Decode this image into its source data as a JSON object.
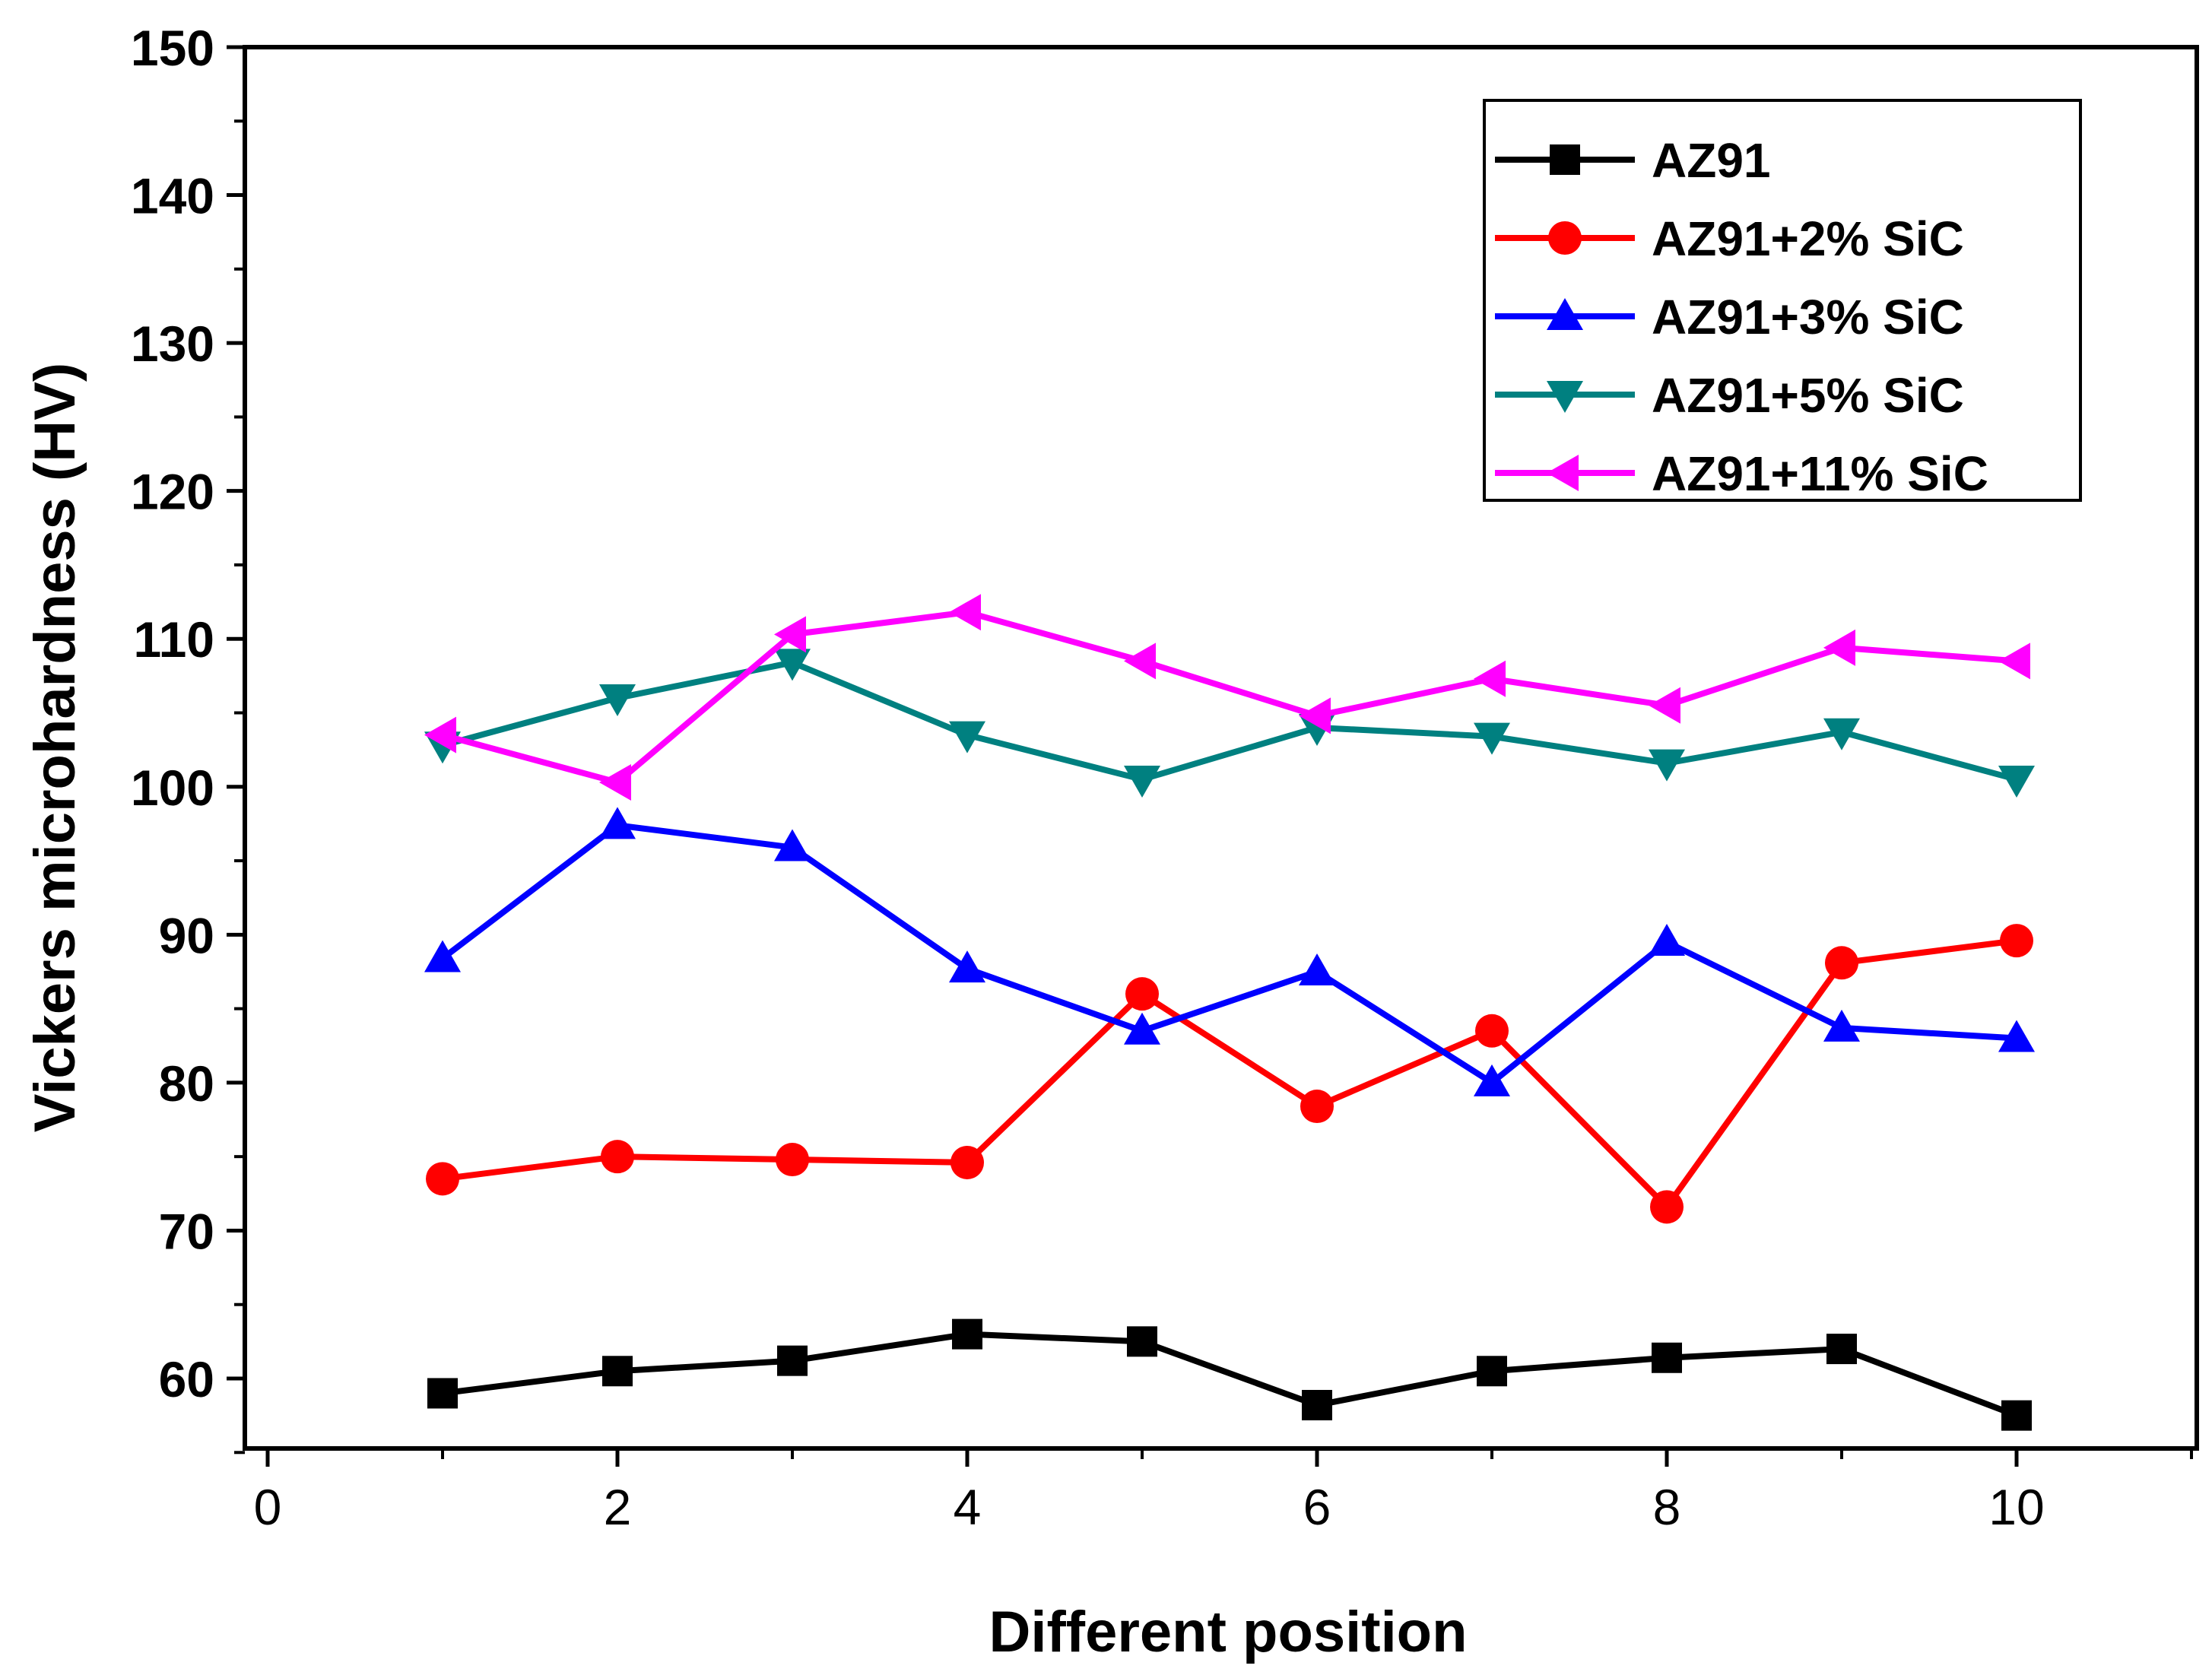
{
  "chart_data": {
    "type": "line",
    "title": "",
    "xlabel": "Different position",
    "ylabel": "Vickers microhardness (HV)",
    "xlim": [
      0,
      11
    ],
    "ylim": [
      55,
      150
    ],
    "xticks": [
      0,
      2,
      4,
      6,
      8,
      10
    ],
    "yticks": [
      60,
      70,
      80,
      90,
      100,
      110,
      120,
      130,
      140,
      150
    ],
    "legend_position": "top-right",
    "x": [
      1,
      2,
      3,
      4,
      5,
      6,
      7,
      8,
      9,
      10
    ],
    "series": [
      {
        "name": "AZ91",
        "color": "#000000",
        "marker": "square",
        "values": [
          59.0,
          60.5,
          61.2,
          63.0,
          62.5,
          58.2,
          60.5,
          61.4,
          62.0,
          57.5
        ]
      },
      {
        "name": "AZ91+2% SiC",
        "color": "#ff0000",
        "marker": "circle",
        "values": [
          73.5,
          75.0,
          74.8,
          74.6,
          86.0,
          78.4,
          83.5,
          71.6,
          88.1,
          89.6
        ]
      },
      {
        "name": "AZ91+3% SiC",
        "color": "#0000ff",
        "marker": "triangle-up",
        "values": [
          88.4,
          97.4,
          95.9,
          87.7,
          83.5,
          87.5,
          80.0,
          89.5,
          83.7,
          83.0
        ]
      },
      {
        "name": "AZ91+5% SiC",
        "color": "#008080",
        "marker": "triangle-down",
        "values": [
          102.8,
          106.0,
          108.4,
          103.5,
          100.5,
          104.0,
          103.4,
          101.6,
          103.7,
          100.5
        ]
      },
      {
        "name": "AZ91+11% SiC",
        "color": "#ff00ff",
        "marker": "triangle-left",
        "values": [
          103.5,
          100.3,
          110.3,
          111.8,
          108.5,
          104.8,
          107.3,
          105.5,
          109.4,
          108.5
        ]
      }
    ]
  }
}
